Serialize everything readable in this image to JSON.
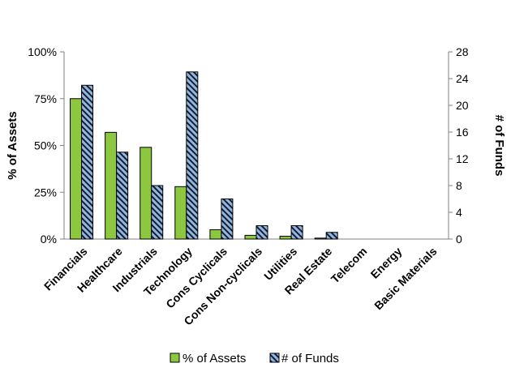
{
  "chart_data": {
    "type": "bar",
    "categories": [
      "Financials",
      "Healthcare",
      "Industrials",
      "Technology",
      "Cons Cyclicals",
      "Cons Non-cyclicals",
      "Utilities",
      "Real Estate",
      "Telecom",
      "Energy",
      "Basic Materials"
    ],
    "series": [
      {
        "name": "% of Assets",
        "axis": "left",
        "values": [
          75,
          57,
          49,
          28,
          5,
          2,
          1.5,
          0.5,
          0,
          0,
          0
        ],
        "color": "#8dc63f",
        "pattern": "solid"
      },
      {
        "name": "# of Funds",
        "axis": "right",
        "values": [
          23,
          13,
          8,
          25,
          6,
          2,
          2,
          1,
          0,
          0,
          0
        ],
        "color": "#8fb8e0",
        "pattern": "diagonal-stripes"
      }
    ],
    "y_left": {
      "label": "% of Assets",
      "ylim": [
        0,
        100
      ],
      "ticks": [
        "0%",
        "25%",
        "50%",
        "75%",
        "100%"
      ]
    },
    "y_right": {
      "label": "# of Funds",
      "ylim": [
        0,
        28
      ],
      "ticks": [
        "0",
        "4",
        "8",
        "12",
        "16",
        "20",
        "24",
        "28"
      ]
    },
    "grid": false,
    "legend_position": "bottom"
  }
}
